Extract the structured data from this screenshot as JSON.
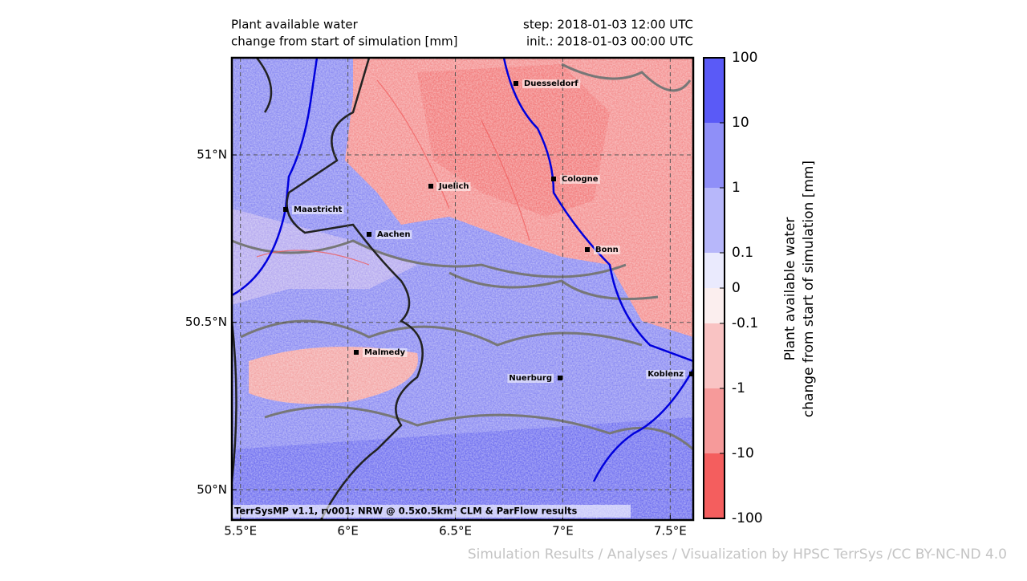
{
  "header": {
    "title": "Plant available water",
    "subtitle": "change from start of simulation [mm]",
    "step": "step: 2018-01-03 12:00 UTC",
    "init": "init.: 2018-01-03 00:00 UTC"
  },
  "map": {
    "xlim": [
      5.46,
      7.607
    ],
    "ylim": [
      49.91,
      51.29
    ],
    "xticks": [
      {
        "value": 5.5,
        "label": "5.5°E"
      },
      {
        "value": 6,
        "label": "6°E"
      },
      {
        "value": 6.5,
        "label": "6.5°E"
      },
      {
        "value": 7,
        "label": "7°E"
      },
      {
        "value": 7.5,
        "label": "7.5°E"
      }
    ],
    "yticks": [
      {
        "value": 50,
        "label": "50°N"
      },
      {
        "value": 50.5,
        "label": "50.5°N"
      },
      {
        "value": 51,
        "label": "51°N"
      }
    ],
    "grid": true,
    "cities": [
      "Duesseldorf",
      "Cologne",
      "Juelich",
      "Maastricht",
      "Aachen",
      "Bonn",
      "Malmedy",
      "Nuerburg",
      "Koblenz"
    ],
    "credit": "TerrSysMP v1.1, rv001; NRW @ 0.5x0.5km² CLM & ParFlow results"
  },
  "colorbar": {
    "label": [
      "Plant available water",
      "change from start of simulation [mm]"
    ],
    "ticks": [
      100,
      10,
      1,
      0.1,
      0,
      -0.1,
      -1,
      -10,
      -100
    ],
    "colors": [
      "#5a5af7",
      "#8f8ff8",
      "#b7b7fa",
      "#eaeafd",
      "#fbeeee",
      "#f9c3c3",
      "#f69a9a",
      "#f45e5e"
    ]
  },
  "footer": "Simulation Results / Analyses / Visualization by HPSC TerrSys /CC BY-NC-ND 4.0"
}
